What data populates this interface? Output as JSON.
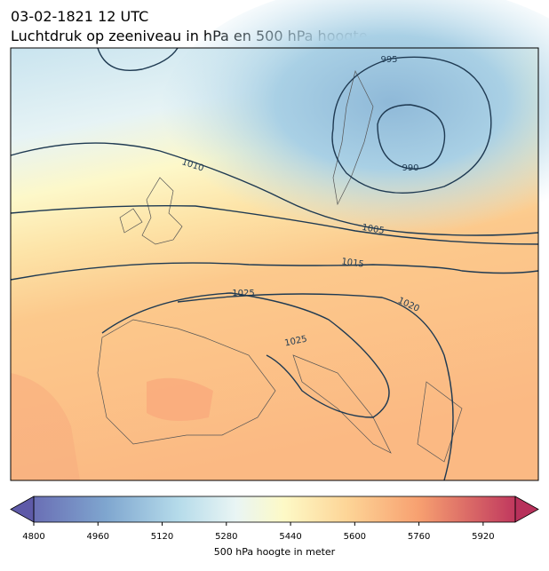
{
  "header": {
    "title": "03-02-1821 12 UTC",
    "subtitle": "Luchtdruk op zeeniveau in hPa en 500 hPa hoogte"
  },
  "map": {
    "isobar_labels": [
      995,
      990,
      1010,
      1005,
      1015,
      1025,
      1020,
      1025
    ]
  },
  "colorbar": {
    "label": "500 hPa hoogte in meter",
    "lim": [
      4800,
      6000
    ],
    "ticks": [
      4800,
      4960,
      5120,
      5280,
      5440,
      5600,
      5760,
      5920
    ]
  }
}
